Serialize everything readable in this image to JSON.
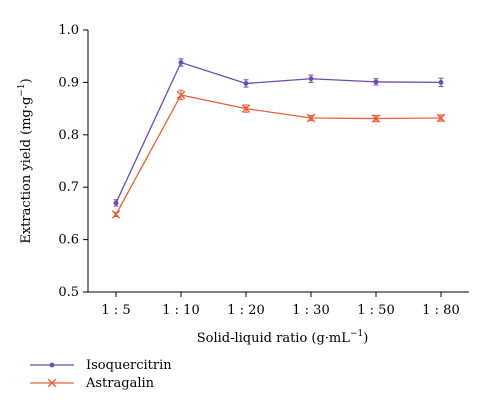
{
  "chart_data": {
    "type": "line",
    "categories": [
      "1 : 5",
      "1 : 10",
      "1 : 20",
      "1 : 30",
      "1 : 50",
      "1 : 80"
    ],
    "xlabel": "Solid-liquid ratio (g·mL",
    "xlabel_sup": "−1",
    "xlabel_end": ")",
    "ylabel": "Extraction yield (mg·g",
    "ylabel_sup": "−1",
    "ylabel_end": ")",
    "ylim": [
      0.5,
      1.0
    ],
    "yticks": [
      "0.5",
      "0.6",
      "0.7",
      "0.8",
      "0.9",
      "1.0"
    ],
    "ytick_values": [
      0.5,
      0.6,
      0.7,
      0.8,
      0.9,
      1.0
    ],
    "grid": false,
    "legend_position": "bottom-left",
    "series": [
      {
        "name": "Isoquercitrin",
        "values": [
          0.67,
          0.938,
          0.898,
          0.907,
          0.901,
          0.9
        ],
        "errors": [
          0.006,
          0.007,
          0.007,
          0.007,
          0.006,
          0.008
        ],
        "color": "#6a4bb0",
        "marker": "dot"
      },
      {
        "name": "Astragalin",
        "values": [
          0.648,
          0.876,
          0.85,
          0.832,
          0.831,
          0.832
        ],
        "errors": [
          0.004,
          0.009,
          0.007,
          0.005,
          0.006,
          0.006
        ],
        "color": "#e8603a",
        "marker": "x"
      }
    ]
  }
}
